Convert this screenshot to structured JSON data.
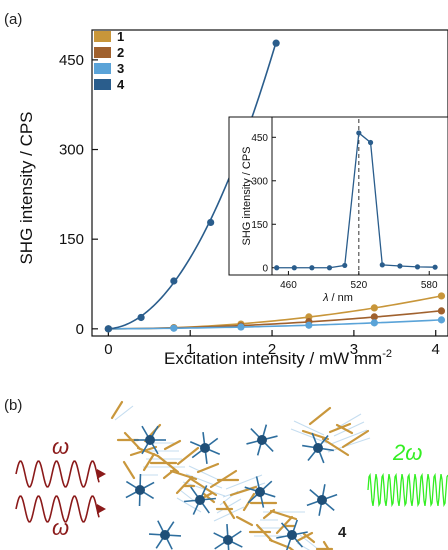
{
  "panel_a_label": "(a)",
  "panel_b_label": "(b)",
  "colors": {
    "s1": "#c8963a",
    "s2": "#a0612e",
    "s3": "#5aa3d8",
    "s4": "#2a5d8c",
    "red": "#8b1a1a",
    "green": "#33ee22"
  },
  "chart_data": [
    {
      "type": "line",
      "xlabel": "Excitation intensity / mW mm",
      "xlabel_superscript": "-2",
      "ylabel": "SHG intensity / CPS",
      "xlim": [
        -0.2,
        4.15
      ],
      "ylim": [
        -12,
        500
      ],
      "xticks": [
        0,
        1,
        2,
        3,
        4
      ],
      "yticks": [
        0,
        150,
        300,
        450
      ],
      "legend": [
        "1",
        "2",
        "3",
        "4"
      ],
      "legend_position": "top-left",
      "series": [
        {
          "name": "1",
          "color": "#c8963a",
          "x": [
            0,
            0.8,
            1.62,
            2.45,
            3.25,
            4.07
          ],
          "y": [
            0,
            2,
            8,
            20,
            35,
            55
          ]
        },
        {
          "name": "2",
          "color": "#a0612e",
          "x": [
            0,
            0.8,
            1.62,
            2.45,
            3.25,
            4.07
          ],
          "y": [
            0,
            1.5,
            5,
            12,
            20,
            30
          ]
        },
        {
          "name": "3",
          "color": "#5aa3d8",
          "x": [
            0,
            0.8,
            1.62,
            2.45,
            3.25,
            4.07
          ],
          "y": [
            0,
            1,
            3,
            6,
            10,
            15
          ]
        },
        {
          "name": "4",
          "color": "#2a5d8c",
          "x": [
            0,
            0.4,
            0.8,
            1.25,
            1.63,
            2.05
          ],
          "y": [
            0,
            19,
            80,
            178,
            312,
            478
          ]
        }
      ]
    },
    {
      "type": "line",
      "inset": true,
      "xlabel_italic": "λ",
      "xlabel_rest": " / nm",
      "ylabel": "SHG intensity / CPS",
      "xlim": [
        446,
        596
      ],
      "ylim": [
        -25,
        520
      ],
      "xticks": [
        460,
        520,
        580
      ],
      "yticks": [
        0,
        150,
        300,
        450
      ],
      "reference_line_x": 520,
      "series": [
        {
          "name": "",
          "color": "#2a5d8c",
          "x": [
            450,
            465,
            480,
            495,
            508,
            520,
            530,
            540,
            555,
            570,
            585
          ],
          "y": [
            0,
            0,
            0,
            0,
            8,
            465,
            432,
            10,
            6,
            3,
            2
          ]
        }
      ]
    }
  ],
  "panel_b": {
    "omega_left_1": "ω",
    "omega_left_2": "ω",
    "omega_right": "2ω",
    "structure_label": "4"
  }
}
